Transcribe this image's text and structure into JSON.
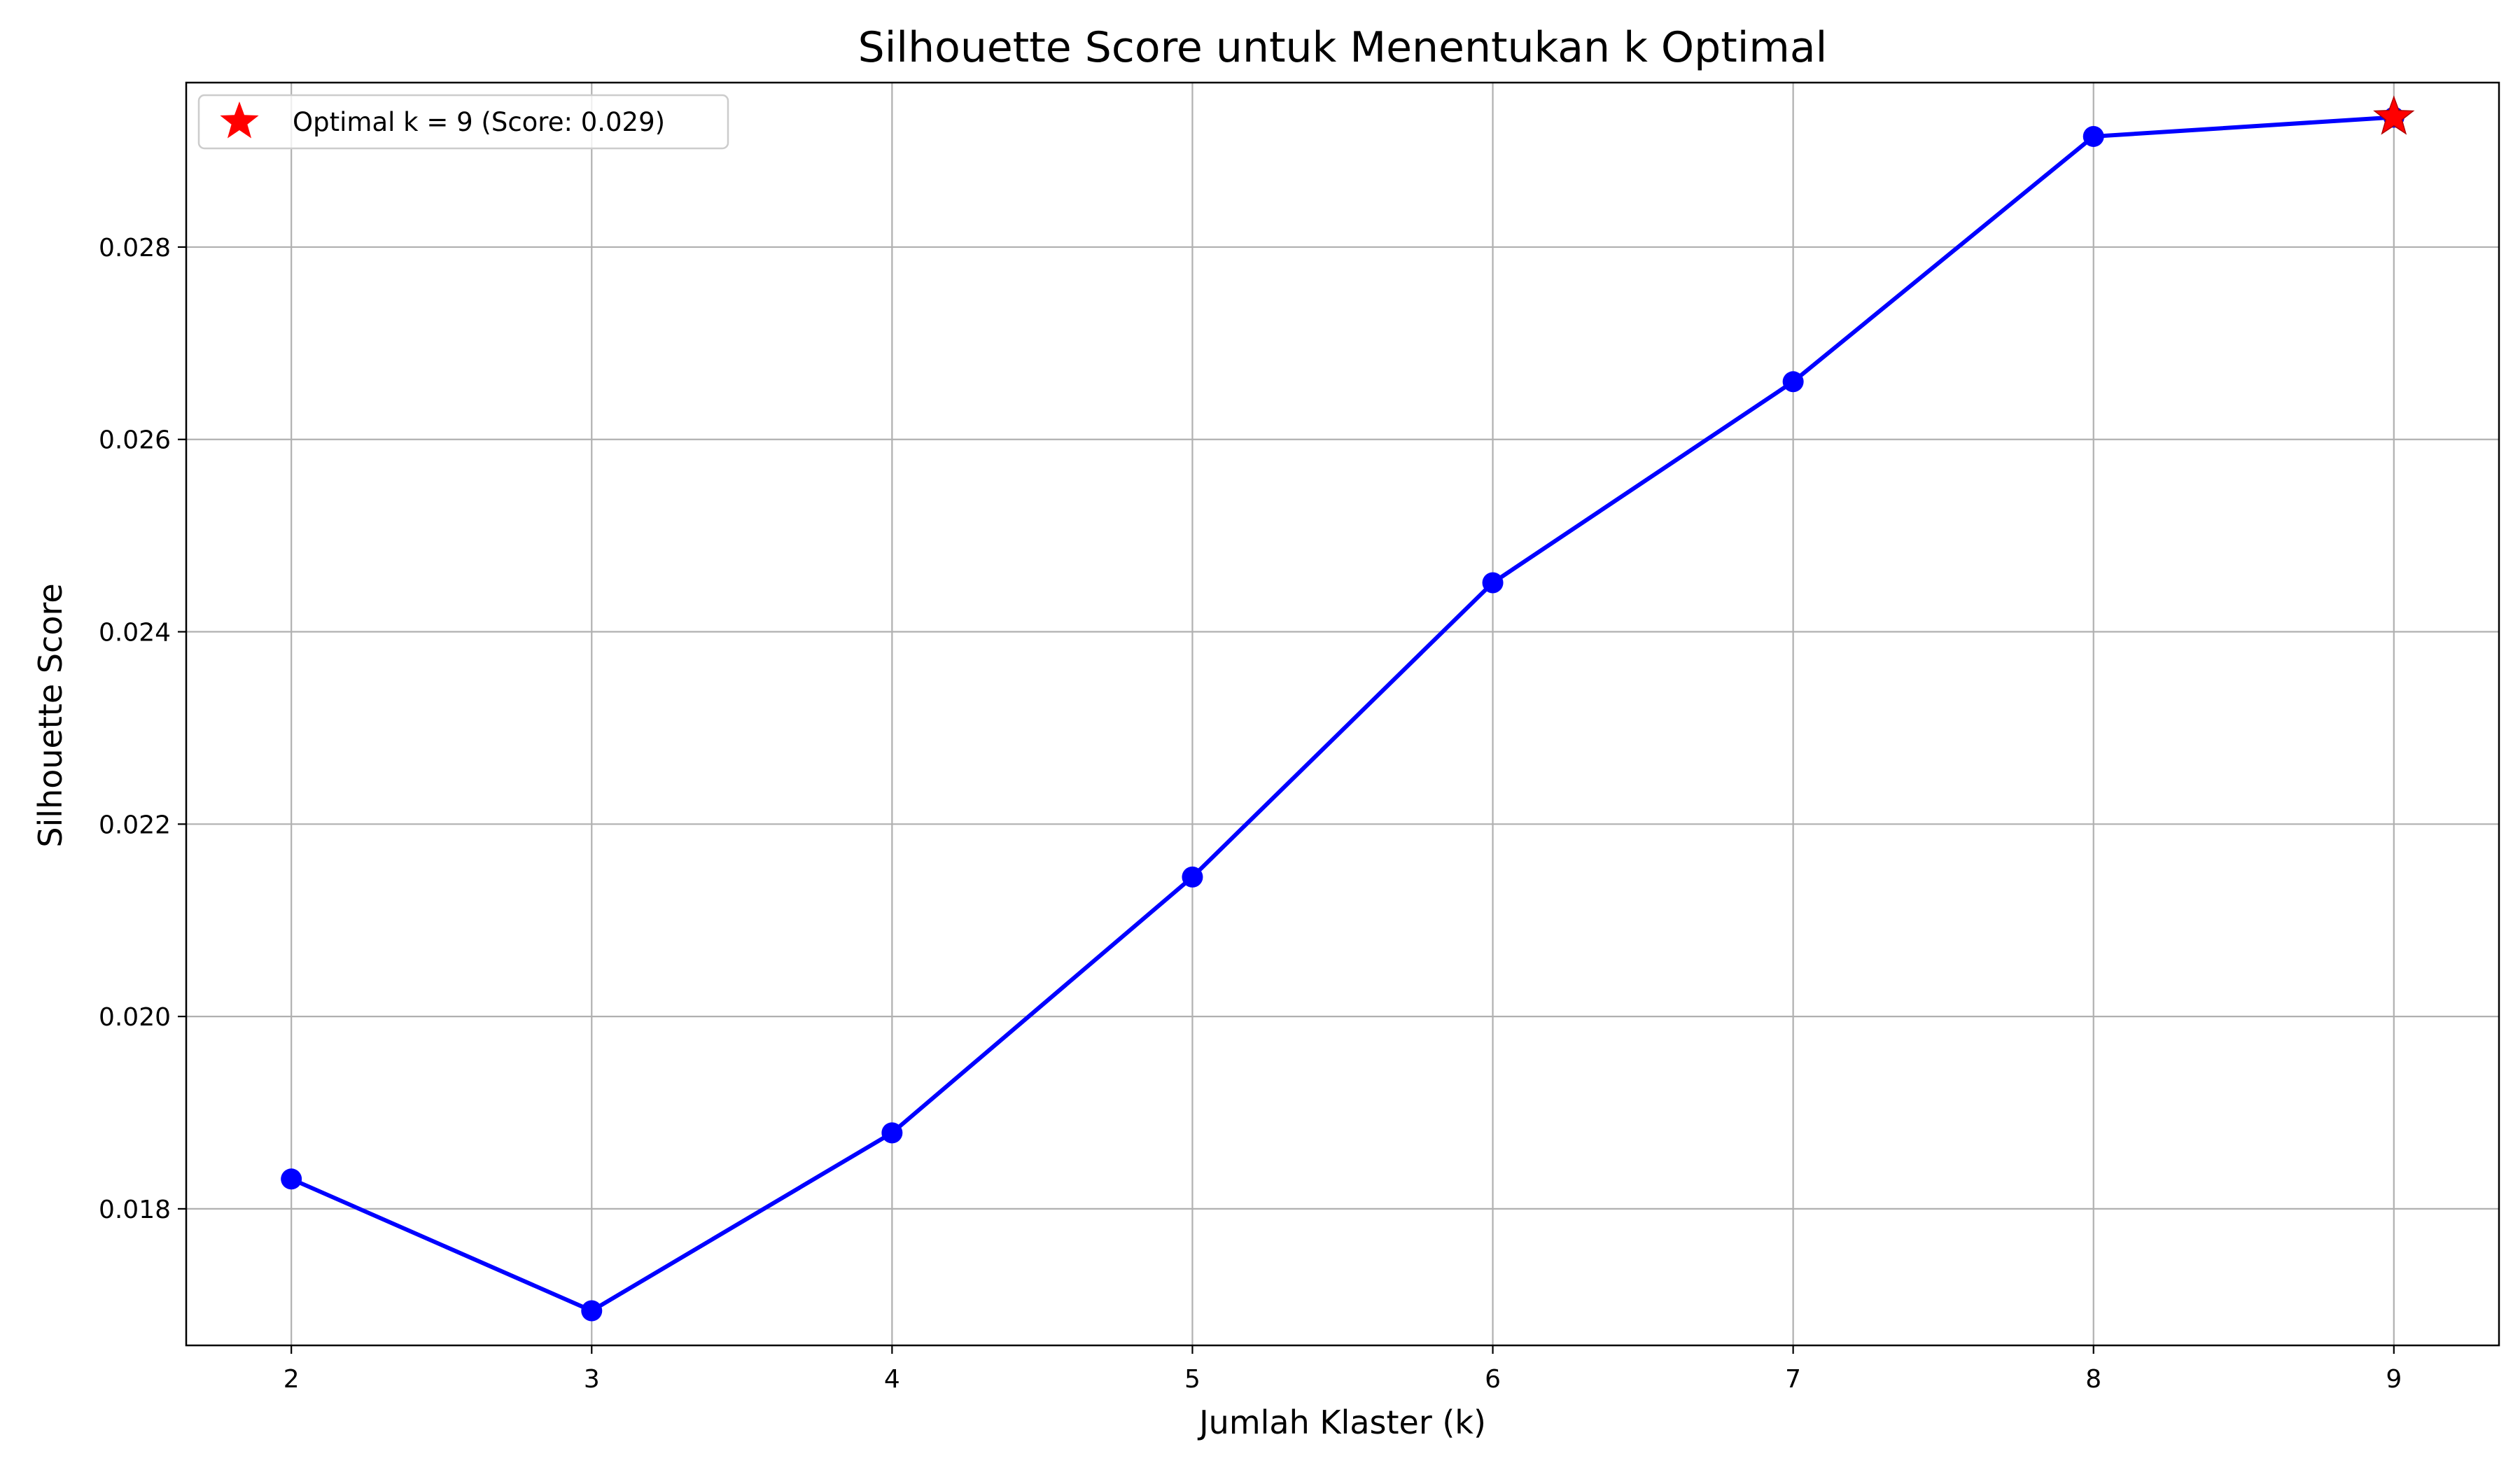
{
  "chart_data": {
    "type": "line",
    "title": "Silhouette Score untuk Menentukan k Optimal",
    "xlabel": "Jumlah Klaster (k)",
    "ylabel": "Silhouette Score",
    "x": [
      2,
      3,
      4,
      5,
      6,
      7,
      8,
      9
    ],
    "series": [
      {
        "values": [
          0.01831,
          0.01694,
          0.01879,
          0.02145,
          0.02451,
          0.0266,
          0.02915,
          0.02935
        ],
        "color": "#0000ff",
        "marker": "circle"
      }
    ],
    "optimal_point": {
      "x": 9,
      "y": 0.02935,
      "marker": "star",
      "color": "#ff0000"
    },
    "xlim": [
      1.65,
      9.35
    ],
    "ylim": [
      0.01658,
      0.02971
    ],
    "xticks": [
      2,
      3,
      4,
      5,
      6,
      7,
      8,
      9
    ],
    "xtick_labels": [
      "2",
      "3",
      "4",
      "5",
      "6",
      "7",
      "8",
      "9"
    ],
    "yticks": [
      0.018,
      0.02,
      0.022,
      0.024,
      0.026,
      0.028
    ],
    "ytick_labels": [
      "0.018",
      "0.020",
      "0.022",
      "0.024",
      "0.026",
      "0.028"
    ],
    "grid": true,
    "legend": {
      "position": "top-left",
      "entries": [
        {
          "label": "Optimal k = 9 (Score: 0.029)",
          "marker": "star",
          "color": "#ff0000"
        }
      ]
    }
  }
}
